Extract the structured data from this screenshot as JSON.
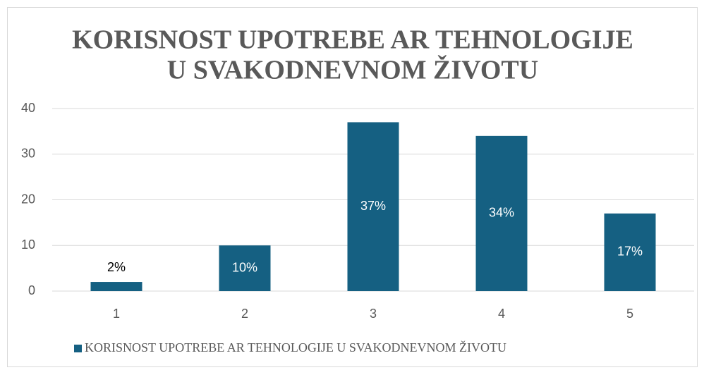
{
  "chart_data": {
    "type": "bar",
    "title": [
      "KORISNOST UPOTREBE AR TEHNOLOGIJE",
      "U SVAKODNEVNOM ŽIVOTU"
    ],
    "categories": [
      "1",
      "2",
      "3",
      "4",
      "5"
    ],
    "series": [
      {
        "name": "KORISNOST UPOTREBE AR TEHNOLOGIJE U SVAKODNEVNOM ŽIVOTU",
        "color": "#156082",
        "values": [
          2,
          10,
          37,
          34,
          17
        ],
        "value_labels": [
          "2%",
          "10%",
          "37%",
          "34%",
          "17%"
        ]
      }
    ],
    "ylim": [
      0,
      40
    ],
    "yticks": [
      0,
      10,
      20,
      30,
      40
    ],
    "grid": true,
    "legend": "bottom"
  }
}
